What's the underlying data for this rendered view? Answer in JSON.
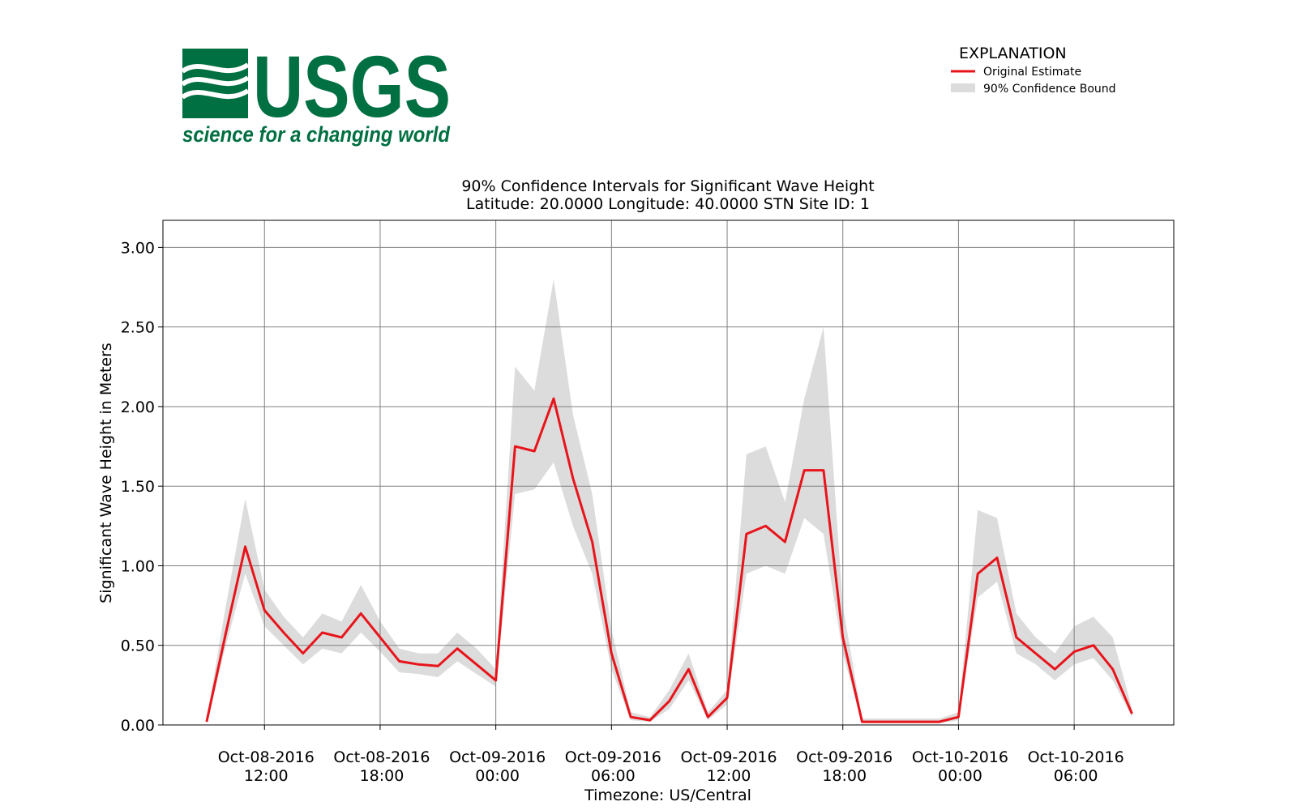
{
  "logo": {
    "name": "USGS",
    "tagline": "science for a changing world"
  },
  "chart_data": {
    "type": "line",
    "title": "90% Confidence Intervals for Significant Wave Height",
    "subtitle": "Latitude: 20.0000 Longitude: 40.0000 STN Site ID: 1",
    "x_label": "Timezone: US/Central",
    "y_label": "Significant Wave Height in Meters",
    "legend_title": "EXPLANATION",
    "legend": "upper right",
    "grid": true,
    "x": [
      "2016-10-08 09:00",
      "2016-10-08 10:00",
      "2016-10-08 11:00",
      "2016-10-08 12:00",
      "2016-10-08 13:00",
      "2016-10-08 14:00",
      "2016-10-08 15:00",
      "2016-10-08 16:00",
      "2016-10-08 17:00",
      "2016-10-08 18:00",
      "2016-10-08 19:00",
      "2016-10-08 20:00",
      "2016-10-08 21:00",
      "2016-10-08 22:00",
      "2016-10-08 23:00",
      "2016-10-09 00:00",
      "2016-10-09 01:00",
      "2016-10-09 02:00",
      "2016-10-09 03:00",
      "2016-10-09 04:00",
      "2016-10-09 05:00",
      "2016-10-09 06:00",
      "2016-10-09 07:00",
      "2016-10-09 08:00",
      "2016-10-09 09:00",
      "2016-10-09 10:00",
      "2016-10-09 11:00",
      "2016-10-09 12:00",
      "2016-10-09 13:00",
      "2016-10-09 14:00",
      "2016-10-09 15:00",
      "2016-10-09 16:00",
      "2016-10-09 17:00",
      "2016-10-09 18:00",
      "2016-10-09 19:00",
      "2016-10-09 20:00",
      "2016-10-09 21:00",
      "2016-10-09 22:00",
      "2016-10-09 23:00",
      "2016-10-10 00:00",
      "2016-10-10 01:00",
      "2016-10-10 02:00",
      "2016-10-10 03:00",
      "2016-10-10 04:00",
      "2016-10-10 05:00",
      "2016-10-10 06:00",
      "2016-10-10 07:00",
      "2016-10-10 08:00",
      "2016-10-10 09:00"
    ],
    "series": [
      {
        "name": "Original Estimate",
        "color": "#e8141b",
        "values": [
          0.02,
          0.58,
          1.12,
          0.72,
          0.58,
          0.45,
          0.58,
          0.55,
          0.7,
          0.55,
          0.4,
          0.38,
          0.37,
          0.48,
          0.38,
          0.28,
          1.75,
          1.72,
          2.05,
          1.55,
          1.15,
          0.45,
          0.05,
          0.03,
          0.15,
          0.35,
          0.05,
          0.17,
          1.2,
          1.25,
          1.15,
          1.6,
          1.6,
          0.55,
          0.02,
          0.02,
          0.02,
          0.02,
          0.02,
          0.05,
          0.95,
          1.05,
          0.55,
          0.45,
          0.35,
          0.46,
          0.5,
          0.35,
          0.07
        ]
      },
      {
        "name": "90% Confidence Bound",
        "color": "#dcdcdc",
        "upper": [
          0.04,
          0.75,
          1.42,
          0.85,
          0.68,
          0.55,
          0.7,
          0.65,
          0.88,
          0.65,
          0.48,
          0.45,
          0.45,
          0.58,
          0.48,
          0.35,
          2.25,
          2.1,
          2.8,
          1.95,
          1.45,
          0.6,
          0.08,
          0.05,
          0.22,
          0.45,
          0.08,
          0.22,
          1.7,
          1.75,
          1.4,
          2.05,
          2.5,
          0.75,
          0.04,
          0.04,
          0.04,
          0.04,
          0.04,
          0.08,
          1.35,
          1.3,
          0.7,
          0.55,
          0.45,
          0.62,
          0.68,
          0.55,
          0.1
        ],
        "lower": [
          0.01,
          0.5,
          0.95,
          0.62,
          0.5,
          0.38,
          0.48,
          0.45,
          0.58,
          0.46,
          0.33,
          0.32,
          0.3,
          0.4,
          0.32,
          0.24,
          1.45,
          1.48,
          1.65,
          1.25,
          0.95,
          0.35,
          0.03,
          0.02,
          0.1,
          0.28,
          0.03,
          0.13,
          0.95,
          1.0,
          0.95,
          1.3,
          1.2,
          0.45,
          0.01,
          0.01,
          0.01,
          0.01,
          0.01,
          0.03,
          0.8,
          0.9,
          0.45,
          0.38,
          0.28,
          0.38,
          0.42,
          0.28,
          0.05
        ]
      }
    ],
    "xlim": [
      "2016-10-08 06:44",
      "2016-10-10 11:10"
    ],
    "xticks": [
      {
        "value": "2016-10-08 12:00",
        "label": "Oct-08-2016\n12:00"
      },
      {
        "value": "2016-10-08 18:00",
        "label": "Oct-08-2016\n18:00"
      },
      {
        "value": "2016-10-09 00:00",
        "label": "Oct-09-2016\n00:00"
      },
      {
        "value": "2016-10-09 06:00",
        "label": "Oct-09-2016\n06:00"
      },
      {
        "value": "2016-10-09 12:00",
        "label": "Oct-09-2016\n12:00"
      },
      {
        "value": "2016-10-09 18:00",
        "label": "Oct-09-2016\n18:00"
      },
      {
        "value": "2016-10-10 00:00",
        "label": "Oct-10-2016\n00:00"
      },
      {
        "value": "2016-10-10 06:00",
        "label": "Oct-10-2016\n06:00"
      }
    ],
    "ylim": [
      0,
      3.17
    ],
    "yticks": [
      {
        "value": 0,
        "label": "0.00"
      },
      {
        "value": 0.5,
        "label": "0.50"
      },
      {
        "value": 1,
        "label": "1.00"
      },
      {
        "value": 1.5,
        "label": "1.50"
      },
      {
        "value": 2,
        "label": "2.00"
      },
      {
        "value": 2.5,
        "label": "2.50"
      },
      {
        "value": 3,
        "label": "3.00"
      }
    ]
  }
}
